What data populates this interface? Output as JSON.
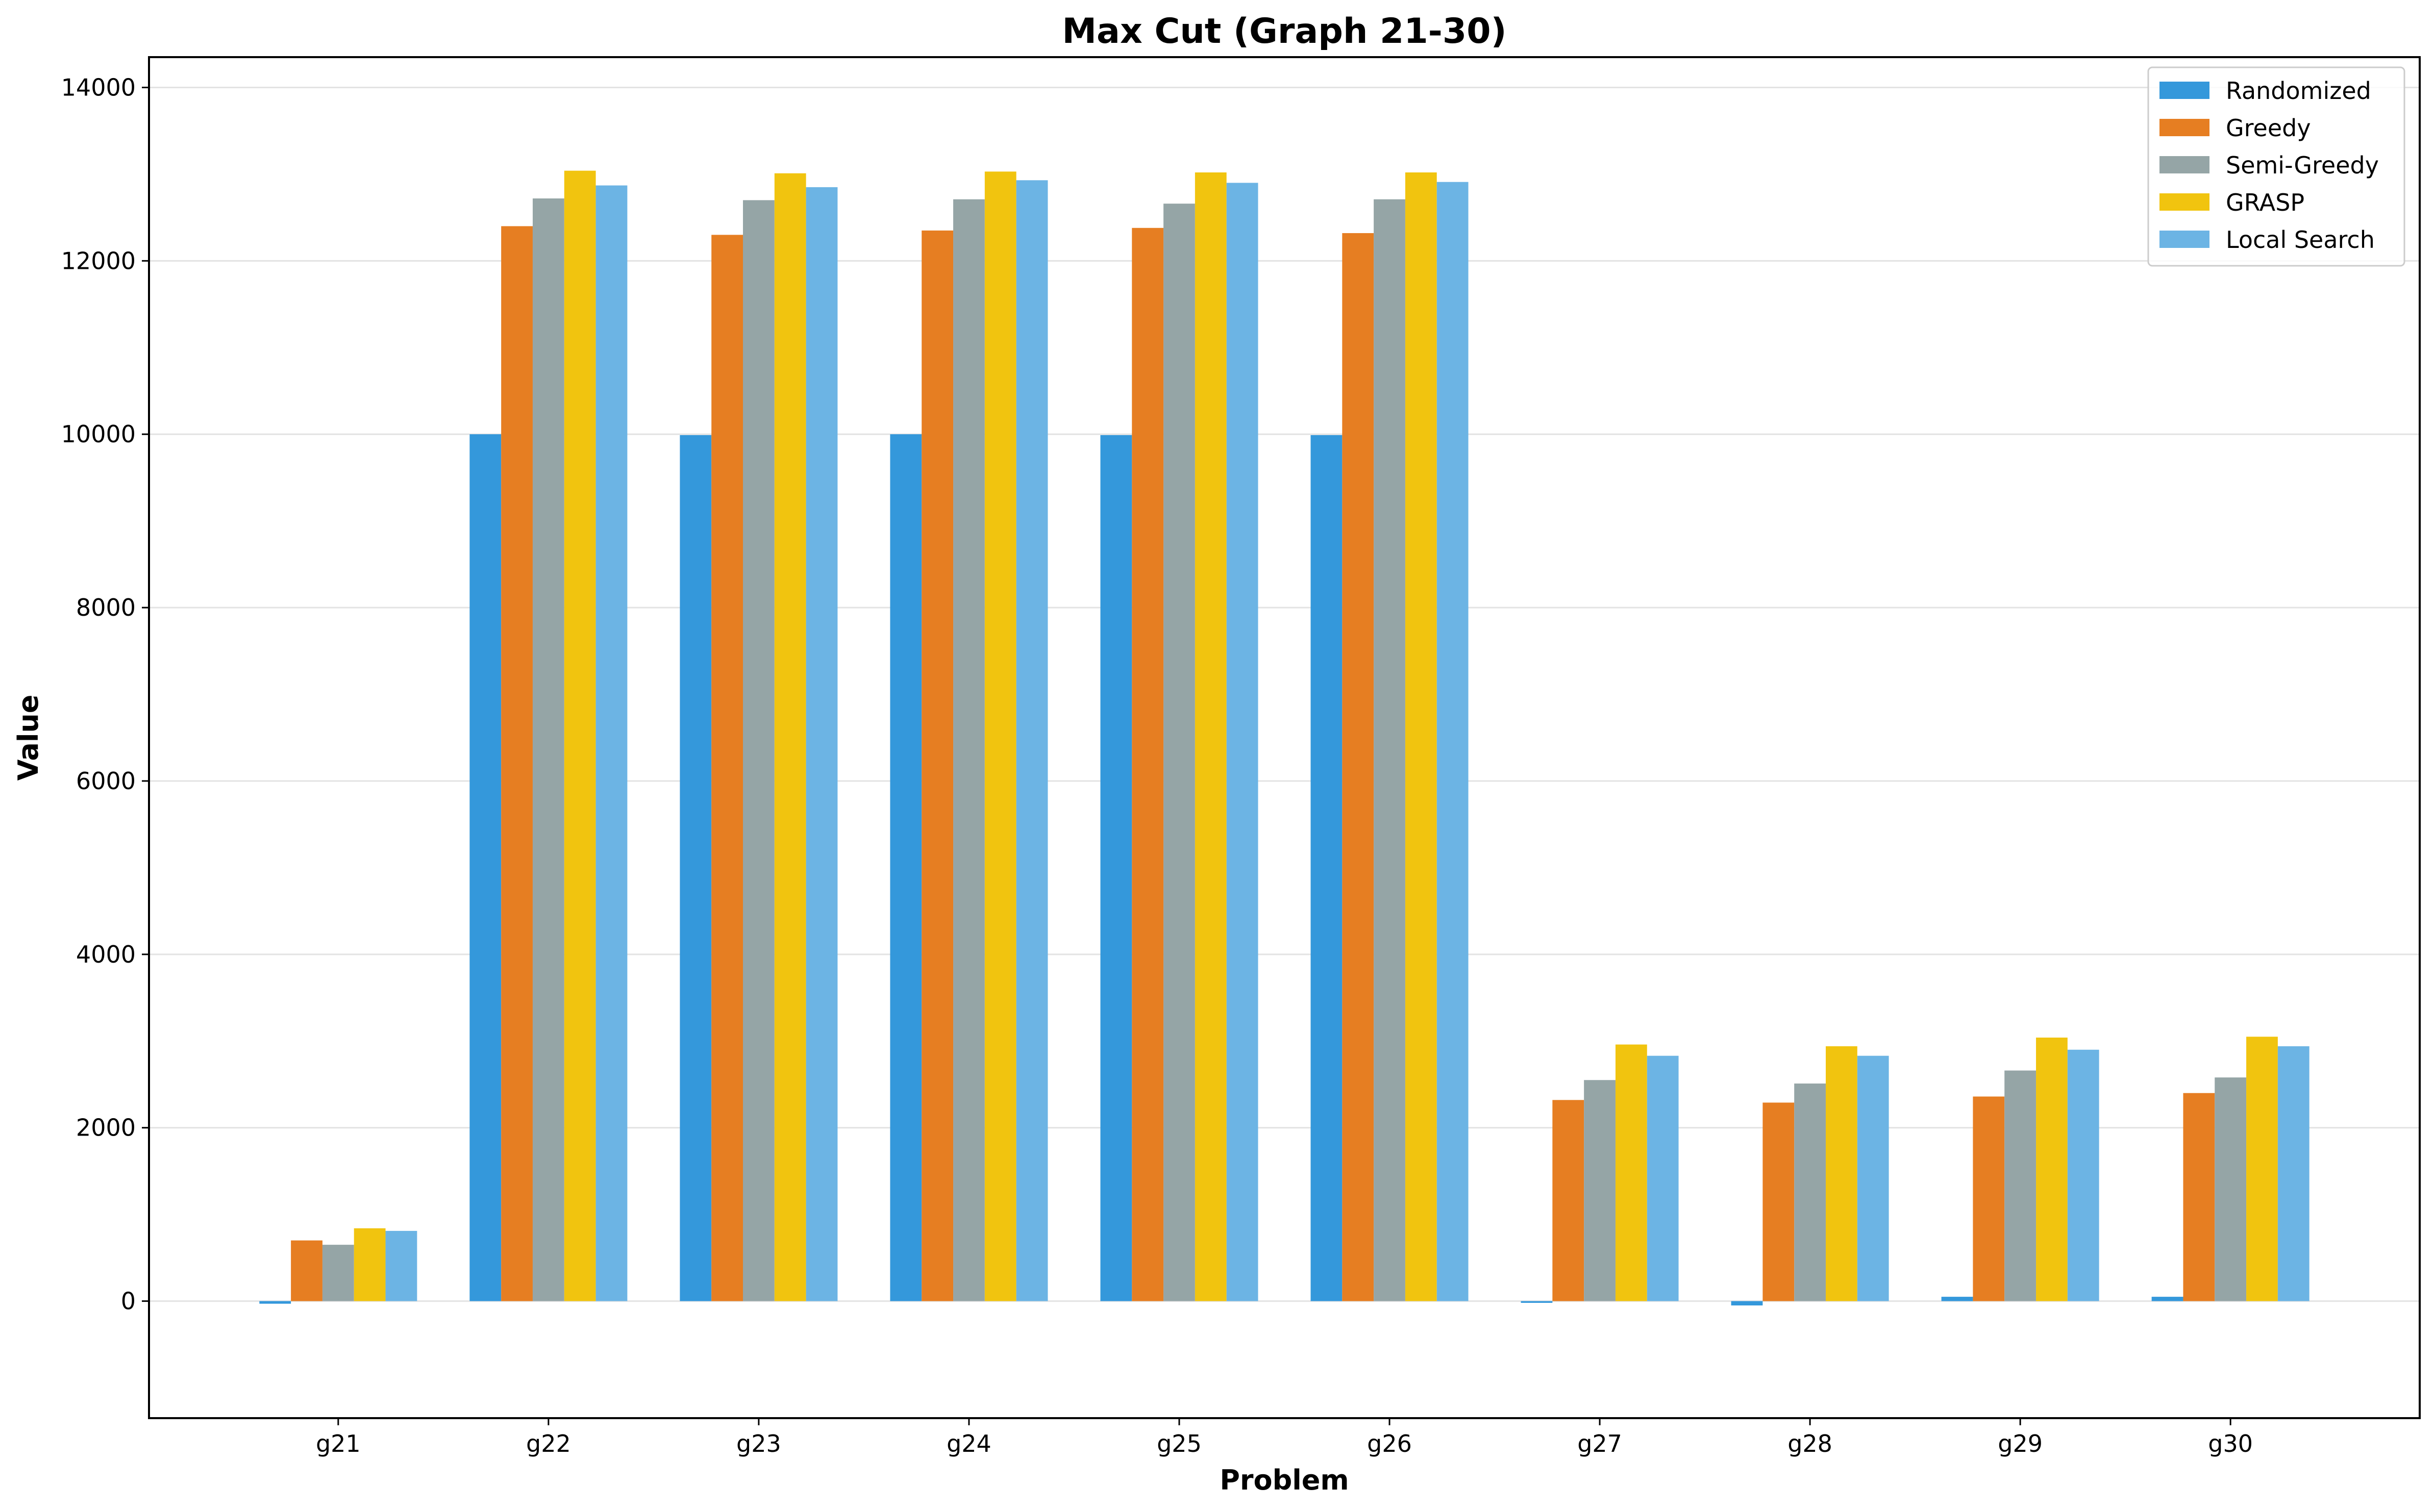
{
  "chart_data": {
    "type": "bar",
    "title": "Max Cut (Graph 21-30)",
    "xlabel": "Problem",
    "ylabel": "Value",
    "categories": [
      "g21",
      "g22",
      "g23",
      "g24",
      "g25",
      "g26",
      "g27",
      "g28",
      "g29",
      "g30"
    ],
    "ylim": [
      -1350,
      14350
    ],
    "yticks": [
      0,
      2000,
      4000,
      6000,
      8000,
      10000,
      12000,
      14000
    ],
    "grid": "horizontal",
    "legend_position": "top-right",
    "series": [
      {
        "name": "Randomized",
        "color": "#3498db",
        "values": [
          -30,
          10000,
          9990,
          10000,
          9990,
          9990,
          -20,
          -50,
          50,
          50
        ]
      },
      {
        "name": "Greedy",
        "color": "#e67e22",
        "values": [
          700,
          12400,
          12300,
          12350,
          12380,
          12320,
          2320,
          2290,
          2360,
          2400
        ]
      },
      {
        "name": "Semi-Greedy",
        "color": "#95a5a6",
        "values": [
          650,
          12720,
          12700,
          12710,
          12660,
          12710,
          2550,
          2510,
          2660,
          2580
        ]
      },
      {
        "name": "GRASP",
        "color": "#f1c40f",
        "values": [
          840,
          13040,
          13010,
          13030,
          13020,
          13020,
          2960,
          2940,
          3040,
          3050
        ]
      },
      {
        "name": "Local Search",
        "color": "#6cb4e4",
        "values": [
          810,
          12870,
          12850,
          12930,
          12900,
          12910,
          2830,
          2830,
          2900,
          2940
        ]
      }
    ]
  }
}
